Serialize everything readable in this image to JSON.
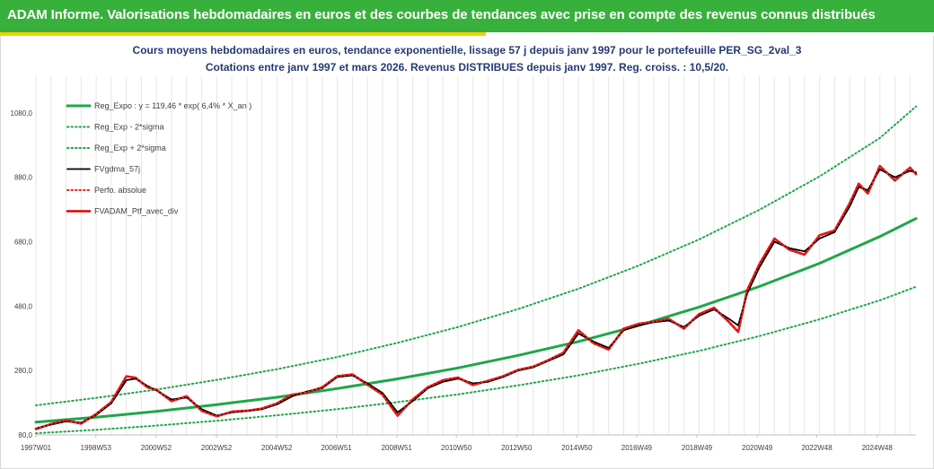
{
  "header": {
    "title": "ADAM Informe. Valorisations hebdomadaires en euros et des courbes de tendances avec prise en compte des revenus connus distribués"
  },
  "colors": {
    "banner": "#38b03c",
    "accent": "#f4d100",
    "trend": "#1fa64a",
    "band": "#1fa64a",
    "smoothed": "#000000",
    "perfo": "#e8251f",
    "portfolio": "#e00000",
    "title_text": "#243a73"
  },
  "chart_data": {
    "type": "line",
    "title": "Cours moyens hebdomadaires en euros, tendance exponentielle, lissage 57 j depuis janv 1997 pour le portefeuille PER_SG_2val_3",
    "subtitle": "Cotations entre janv 1997 et mars 2026. Revenus DISTRIBUES depuis janv 1997. Reg. croiss. : 10,5/20.",
    "xlabel": "",
    "ylabel": "",
    "x_range": [
      1997.0,
      2026.2
    ],
    "ylim": [
      80,
      1180
    ],
    "y_ticks": [
      "80,0",
      "280,0",
      "480,0",
      "680,0",
      "880,0",
      "1080,0"
    ],
    "y_tick_values": [
      80,
      280,
      480,
      680,
      880,
      1080
    ],
    "x_ticks": [
      {
        "label": "1997W01",
        "year": 1997.0
      },
      {
        "label": "1998W53",
        "year": 1998.99
      },
      {
        "label": "2000W52",
        "year": 2000.99
      },
      {
        "label": "2002W52",
        "year": 2002.99
      },
      {
        "label": "2004W52",
        "year": 2004.99
      },
      {
        "label": "2006W51",
        "year": 2006.97
      },
      {
        "label": "2008W51",
        "year": 2008.97
      },
      {
        "label": "2010W50",
        "year": 2010.95
      },
      {
        "label": "2012W50",
        "year": 2012.95
      },
      {
        "label": "2014W50",
        "year": 2014.95
      },
      {
        "label": "2016W49",
        "year": 2016.93
      },
      {
        "label": "2018W49",
        "year": 2018.93
      },
      {
        "label": "2020W49",
        "year": 2020.93
      },
      {
        "label": "2022W48",
        "year": 2022.91
      },
      {
        "label": "2024W48",
        "year": 2024.91
      }
    ],
    "grid": "vertical",
    "legend_position": "top-left",
    "series": [
      {
        "name": "Reg_Expo : y = 119,46 * exp( 6,4% *  X_an )",
        "style": "solid-thick",
        "color": "#1fa64a",
        "x": [
          1997.0,
          1999.0,
          2001.0,
          2003.0,
          2005.0,
          2007.0,
          2009.0,
          2011.0,
          2013.0,
          2015.0,
          2017.0,
          2019.0,
          2021.0,
          2023.0,
          2025.0,
          2026.2
        ],
        "y": [
          119.5,
          135,
          153,
          174,
          197,
          224,
          254,
          288,
          327,
          370,
          420,
          477,
          541,
          613,
          696,
          752
        ]
      },
      {
        "name": "Reg_Exp - 2*sigma",
        "style": "dotted",
        "color": "#1fa64a",
        "x": [
          1997.0,
          1999.0,
          2001.0,
          2003.0,
          2005.0,
          2007.0,
          2009.0,
          2011.0,
          2013.0,
          2015.0,
          2017.0,
          2019.0,
          2021.0,
          2023.0,
          2025.0,
          2026.2
        ],
        "y": [
          85,
          96,
          109,
          124,
          141,
          160,
          182,
          206,
          234,
          265,
          301,
          341,
          387,
          439,
          498,
          540
        ]
      },
      {
        "name": "Reg_Exp + 2*sigma",
        "style": "dotted",
        "color": "#1fa64a",
        "x": [
          1997.0,
          1999.0,
          2001.0,
          2003.0,
          2005.0,
          2007.0,
          2009.0,
          2011.0,
          2013.0,
          2015.0,
          2017.0,
          2019.0,
          2021.0,
          2023.0,
          2025.0,
          2026.2
        ],
        "y": [
          172,
          195,
          221,
          251,
          284,
          322,
          366,
          415,
          471,
          534,
          606,
          687,
          779,
          883,
          1002,
          1100
        ]
      },
      {
        "name": "FVgdma_57j",
        "style": "solid",
        "color": "#000000",
        "x": [
          1997.0,
          1997.5,
          1998.0,
          1998.5,
          1999.0,
          1999.5,
          2000.0,
          2000.3,
          2000.7,
          2001.0,
          2001.5,
          2002.0,
          2002.5,
          2003.0,
          2003.5,
          2004.0,
          2004.5,
          2005.0,
          2005.5,
          2006.0,
          2006.5,
          2007.0,
          2007.5,
          2008.0,
          2008.5,
          2009.0,
          2009.5,
          2010.0,
          2010.5,
          2011.0,
          2011.5,
          2012.0,
          2012.5,
          2013.0,
          2013.5,
          2014.0,
          2014.5,
          2015.0,
          2015.5,
          2016.0,
          2016.5,
          2017.0,
          2017.5,
          2018.0,
          2018.5,
          2019.0,
          2019.5,
          2020.0,
          2020.3,
          2020.6,
          2021.0,
          2021.5,
          2022.0,
          2022.5,
          2023.0,
          2023.5,
          2024.0,
          2024.3,
          2024.6,
          2025.0,
          2025.5,
          2026.0,
          2026.2
        ],
        "y": [
          100,
          112,
          122,
          118,
          142,
          178,
          250,
          255,
          232,
          218,
          190,
          196,
          160,
          140,
          150,
          154,
          160,
          175,
          200,
          215,
          225,
          260,
          265,
          240,
          210,
          150,
          185,
          225,
          245,
          255,
          240,
          245,
          260,
          280,
          290,
          310,
          330,
          395,
          370,
          350,
          405,
          420,
          430,
          435,
          415,
          450,
          470,
          440,
          420,
          520,
          600,
          680,
          660,
          650,
          690,
          710,
          790,
          850,
          840,
          905,
          880,
          900,
          895
        ]
      },
      {
        "name": "Perfo. absolue",
        "style": "dotted",
        "color": "#e8251f",
        "x": [
          1997.0,
          1997.5,
          1998.0,
          1998.5,
          1999.0,
          1999.5,
          2000.0,
          2000.3,
          2000.7,
          2001.0,
          2001.5,
          2002.0,
          2002.5,
          2003.0,
          2003.5,
          2004.0,
          2004.5,
          2005.0,
          2005.5,
          2006.0,
          2006.5,
          2007.0,
          2007.5,
          2008.0,
          2008.5,
          2009.0,
          2009.5,
          2010.0,
          2010.5,
          2011.0,
          2011.5,
          2012.0,
          2012.5,
          2013.0,
          2013.5,
          2014.0,
          2014.5,
          2015.0,
          2015.5,
          2016.0,
          2016.5,
          2017.0,
          2017.5,
          2018.0,
          2018.5,
          2019.0,
          2019.5,
          2020.0,
          2020.3,
          2020.6,
          2021.0,
          2021.5,
          2022.0,
          2022.5,
          2023.0,
          2023.5,
          2024.0,
          2024.3,
          2024.6,
          2025.0,
          2025.5,
          2026.0,
          2026.2
        ],
        "y": [
          98,
          114,
          125,
          115,
          145,
          182,
          262,
          258,
          228,
          220,
          185,
          200,
          155,
          138,
          152,
          155,
          162,
          178,
          205,
          212,
          228,
          262,
          268,
          236,
          205,
          140,
          190,
          228,
          250,
          258,
          235,
          248,
          262,
          282,
          292,
          312,
          335,
          405,
          365,
          345,
          410,
          425,
          432,
          440,
          410,
          455,
          475,
          430,
          400,
          530,
          610,
          690,
          655,
          640,
          700,
          715,
          800,
          860,
          830,
          915,
          870,
          910,
          890
        ]
      },
      {
        "name": "FVADAM_Ptf_avec_div",
        "style": "solid-thick",
        "color": "#e00000",
        "x": [
          1997.0,
          1997.5,
          1998.0,
          1998.5,
          1999.0,
          1999.5,
          2000.0,
          2000.3,
          2000.7,
          2001.0,
          2001.5,
          2002.0,
          2002.5,
          2003.0,
          2003.5,
          2004.0,
          2004.5,
          2005.0,
          2005.5,
          2006.0,
          2006.5,
          2007.0,
          2007.5,
          2008.0,
          2008.5,
          2009.0,
          2009.5,
          2010.0,
          2010.5,
          2011.0,
          2011.5,
          2012.0,
          2012.5,
          2013.0,
          2013.5,
          2014.0,
          2014.5,
          2015.0,
          2015.5,
          2016.0,
          2016.5,
          2017.0,
          2017.5,
          2018.0,
          2018.5,
          2019.0,
          2019.5,
          2020.0,
          2020.3,
          2020.6,
          2021.0,
          2021.5,
          2022.0,
          2022.5,
          2023.0,
          2023.5,
          2024.0,
          2024.3,
          2024.6,
          2025.0,
          2025.5,
          2026.0,
          2026.2
        ],
        "y": [
          98,
          114,
          125,
          115,
          145,
          182,
          262,
          258,
          228,
          220,
          185,
          200,
          155,
          138,
          152,
          155,
          162,
          178,
          205,
          212,
          228,
          262,
          268,
          236,
          205,
          140,
          190,
          228,
          250,
          258,
          235,
          248,
          262,
          282,
          292,
          312,
          335,
          405,
          365,
          345,
          410,
          425,
          432,
          440,
          410,
          455,
          475,
          430,
          400,
          530,
          610,
          690,
          655,
          640,
          700,
          715,
          800,
          860,
          830,
          915,
          870,
          910,
          890
        ]
      }
    ]
  }
}
